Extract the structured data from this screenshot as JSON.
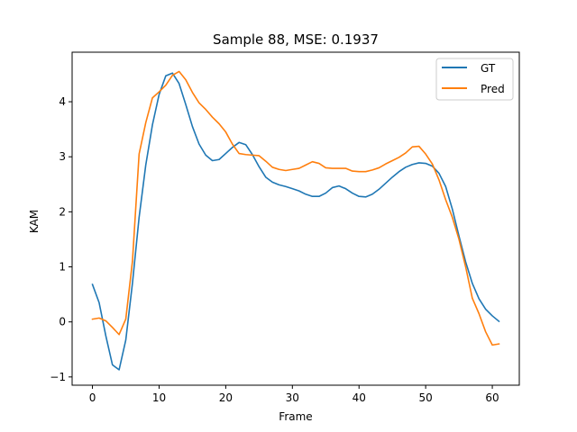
{
  "chart_data": {
    "type": "line",
    "title": "Sample 88, MSE: 0.1937",
    "xlabel": "Frame",
    "ylabel": "KAM",
    "xlim": [
      -3.05,
      64.05
    ],
    "ylim": [
      -1.15,
      4.9
    ],
    "xticks": [
      0,
      10,
      20,
      30,
      40,
      50,
      60
    ],
    "yticks": [
      -1,
      0,
      1,
      2,
      3,
      4
    ],
    "grid": false,
    "legend_position": "top-right",
    "x": [
      0,
      1,
      2,
      3,
      4,
      5,
      6,
      7,
      8,
      9,
      10,
      11,
      12,
      13,
      14,
      15,
      16,
      17,
      18,
      19,
      20,
      21,
      22,
      23,
      24,
      25,
      26,
      27,
      28,
      29,
      30,
      31,
      32,
      33,
      34,
      35,
      36,
      37,
      38,
      39,
      40,
      41,
      42,
      43,
      44,
      45,
      46,
      47,
      48,
      49,
      50,
      51,
      52,
      53,
      54,
      55,
      56,
      57,
      58,
      59,
      60,
      61
    ],
    "series": [
      {
        "name": "GT",
        "color": "#1f77b4",
        "values": [
          0.68,
          0.35,
          -0.25,
          -0.78,
          -0.87,
          -0.33,
          0.7,
          1.9,
          2.85,
          3.58,
          4.13,
          4.47,
          4.52,
          4.33,
          3.95,
          3.55,
          3.23,
          3.03,
          2.93,
          2.95,
          3.06,
          3.17,
          3.26,
          3.22,
          3.04,
          2.82,
          2.63,
          2.54,
          2.49,
          2.46,
          2.42,
          2.38,
          2.32,
          2.28,
          2.28,
          2.34,
          2.44,
          2.47,
          2.42,
          2.34,
          2.28,
          2.27,
          2.32,
          2.41,
          2.52,
          2.63,
          2.73,
          2.81,
          2.86,
          2.89,
          2.88,
          2.83,
          2.7,
          2.46,
          2.05,
          1.56,
          1.09,
          0.7,
          0.42,
          0.23,
          0.11,
          0.01
        ]
      },
      {
        "name": "Pred",
        "color": "#ff7f0e",
        "values": [
          0.05,
          0.07,
          0.02,
          -0.1,
          -0.23,
          0.05,
          1.1,
          3.05,
          3.62,
          4.07,
          4.18,
          4.3,
          4.48,
          4.55,
          4.4,
          4.17,
          3.98,
          3.86,
          3.72,
          3.6,
          3.45,
          3.23,
          3.06,
          3.04,
          3.03,
          3.02,
          2.92,
          2.81,
          2.77,
          2.75,
          2.77,
          2.79,
          2.85,
          2.91,
          2.88,
          2.8,
          2.79,
          2.79,
          2.79,
          2.74,
          2.73,
          2.73,
          2.76,
          2.8,
          2.87,
          2.93,
          2.99,
          3.07,
          3.18,
          3.19,
          3.05,
          2.87,
          2.58,
          2.22,
          1.9,
          1.5,
          1.0,
          0.43,
          0.15,
          -0.18,
          -0.42,
          -0.4
        ]
      }
    ]
  }
}
